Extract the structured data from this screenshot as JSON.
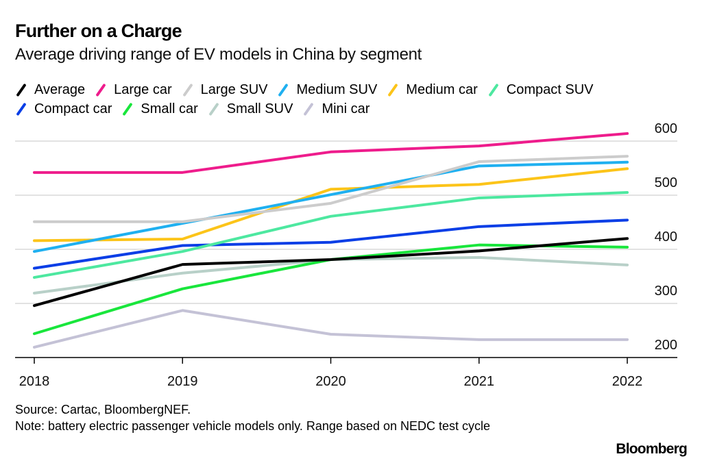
{
  "header": {
    "title": "Further on a Charge",
    "subtitle": "Average driving range of EV models in China by segment"
  },
  "footer": {
    "source": "Source: Cartac, BloombergNEF.",
    "note": "Note: battery electric passenger vehicle models only. Range based on NEDC test cycle",
    "brand": "Bloomberg"
  },
  "chart_data": {
    "type": "line",
    "title": "Further on a Charge",
    "subtitle": "Average driving range of EV models in China by segment",
    "xlabel": "",
    "ylabel": "",
    "x": [
      "2018",
      "2019",
      "2020",
      "2021",
      "2022"
    ],
    "ylim": [
      200,
      620
    ],
    "yticks": [
      200,
      300,
      400,
      500,
      600
    ],
    "grid": true,
    "y_axis_position": "right",
    "legend_placement": "top",
    "series": [
      {
        "name": "Average",
        "color": "#000000",
        "values": [
          296,
          372,
          381,
          397,
          420
        ]
      },
      {
        "name": "Large car",
        "color": "#ee1c8c",
        "values": [
          542,
          542,
          580,
          591,
          614
        ]
      },
      {
        "name": "Large SUV",
        "color": "#cccccc",
        "values": [
          451,
          451,
          485,
          562,
          572
        ]
      },
      {
        "name": "Medium SUV",
        "color": "#1fb0f0",
        "values": [
          396,
          448,
          501,
          554,
          561
        ]
      },
      {
        "name": "Medium car",
        "color": "#fcc419",
        "values": [
          416,
          419,
          511,
          520,
          549
        ]
      },
      {
        "name": "Compact SUV",
        "color": "#4de8a0",
        "values": [
          348,
          396,
          461,
          495,
          505
        ]
      },
      {
        "name": "Compact car",
        "color": "#0a3ee6",
        "values": [
          365,
          407,
          413,
          442,
          454
        ]
      },
      {
        "name": "Small car",
        "color": "#19e63c",
        "values": [
          244,
          327,
          381,
          408,
          404
        ]
      },
      {
        "name": "Small SUV",
        "color": "#b8d0c8",
        "values": [
          319,
          356,
          381,
          385,
          371
        ]
      },
      {
        "name": "Mini car",
        "color": "#c4c2d6",
        "values": [
          219,
          287,
          243,
          233,
          233
        ]
      }
    ]
  }
}
